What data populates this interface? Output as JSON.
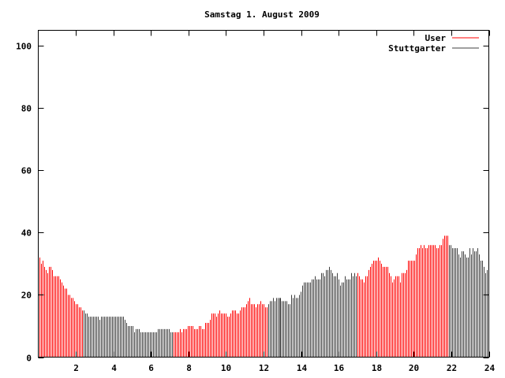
{
  "chart_data": {
    "type": "bar",
    "title": "Samstag 1. August 2009",
    "xlabel": "",
    "ylabel": "",
    "xlim": [
      0,
      24
    ],
    "ylim": [
      0,
      105
    ],
    "x_ticks": [
      "2",
      "4",
      "6",
      "8",
      "10",
      "12",
      "14",
      "16",
      "18",
      "20",
      "22",
      "24"
    ],
    "x_tick_values": [
      2,
      4,
      6,
      8,
      10,
      12,
      14,
      16,
      18,
      20,
      22,
      24
    ],
    "y_ticks": [
      "0",
      "20",
      "40",
      "60",
      "80",
      "100"
    ],
    "y_tick_values": [
      0,
      20,
      40,
      60,
      80,
      100
    ],
    "grid": false,
    "legend_position": "top-right",
    "series": [
      {
        "name": "User",
        "color": "#ff0000",
        "hour_ranges": [
          [
            0,
            2.4
          ],
          [
            7.2,
            12.2
          ],
          [
            17.0,
            21.8
          ]
        ]
      },
      {
        "name": "Stuttgarter",
        "color": "#404040",
        "hour_ranges": [
          [
            2.4,
            7.2
          ],
          [
            12.2,
            17.0
          ],
          [
            21.8,
            24
          ]
        ]
      }
    ],
    "values": [
      32,
      30,
      31,
      29,
      28,
      27,
      29,
      29,
      28,
      26,
      26,
      26,
      26,
      25,
      24,
      23,
      22,
      22,
      20,
      20,
      19,
      19,
      18,
      17,
      17,
      16,
      16,
      15,
      15,
      14,
      14,
      13,
      13,
      13,
      13,
      13,
      13,
      13,
      12,
      13,
      13,
      13,
      13,
      13,
      13,
      13,
      13,
      13,
      13,
      13,
      13,
      13,
      13,
      13,
      12,
      11,
      10,
      10,
      10,
      10,
      8,
      9,
      9,
      9,
      8,
      8,
      8,
      8,
      8,
      8,
      8,
      8,
      8,
      8,
      8,
      9,
      9,
      9,
      9,
      9,
      9,
      9,
      9,
      8,
      8,
      8,
      8,
      8,
      8,
      9,
      8,
      9,
      9,
      9,
      10,
      10,
      10,
      10,
      9,
      9,
      9,
      10,
      10,
      9,
      9,
      11,
      11,
      11,
      12,
      14,
      14,
      14,
      13,
      14,
      15,
      14,
      14,
      14,
      14,
      13,
      13,
      14,
      15,
      15,
      15,
      14,
      14,
      15,
      16,
      16,
      16,
      17,
      18,
      19,
      17,
      17,
      17,
      16,
      17,
      17,
      18,
      17,
      17,
      16,
      16,
      17,
      18,
      18,
      19,
      18,
      19,
      19,
      19,
      19,
      18,
      18,
      18,
      18,
      17,
      17,
      20,
      19,
      20,
      19,
      19,
      20,
      21,
      23,
      24,
      24,
      24,
      24,
      24,
      25,
      25,
      26,
      25,
      25,
      25,
      27,
      27,
      26,
      28,
      28,
      29,
      28,
      27,
      26,
      26,
      27,
      25,
      23,
      24,
      24,
      26,
      25,
      25,
      25,
      27,
      26,
      27,
      26,
      27,
      26,
      25,
      25,
      24,
      26,
      26,
      28,
      29,
      30,
      31,
      31,
      31,
      32,
      31,
      30,
      29,
      29,
      29,
      29,
      27,
      26,
      24,
      25,
      26,
      26,
      26,
      24,
      27,
      27,
      27,
      28,
      31,
      31,
      31,
      31,
      31,
      33,
      35,
      35,
      36,
      35,
      36,
      35,
      35,
      36,
      36,
      36,
      36,
      36,
      35,
      35,
      36,
      36,
      38,
      39,
      39,
      39,
      36,
      36,
      35,
      35,
      35,
      35,
      33,
      32,
      34,
      34,
      33,
      32,
      32,
      35,
      33,
      35,
      34,
      34,
      35,
      33,
      31,
      31,
      29,
      27,
      28
    ]
  }
}
